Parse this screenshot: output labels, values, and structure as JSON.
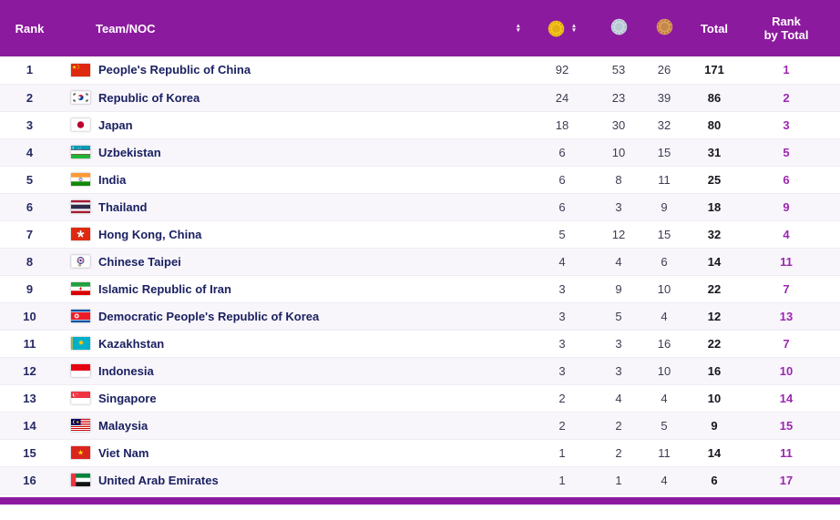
{
  "header": {
    "rank": "Rank",
    "team": "Team/NOC",
    "total": "Total",
    "rank_by_total": "Rank by Total"
  },
  "icons": {
    "gold": "gold-medal-icon",
    "silver": "silver-medal-icon",
    "bronze": "bronze-medal-icon",
    "sort": "sort-arrows-icon"
  },
  "colors": {
    "header_bg": "#8C1A9F",
    "accent_purple": "#9C27B0",
    "team_text": "#1B2161",
    "rank_text": "#262A64",
    "row_alt_bg": "#F8F6FB",
    "row_border": "#EFEBF4"
  },
  "table": {
    "rows": [
      {
        "rank": "1",
        "noc_code": "chn",
        "team": "People's Republic of China",
        "gold": "92",
        "silver": "53",
        "bronze": "26",
        "total": "171",
        "rank_by_total": "1"
      },
      {
        "rank": "2",
        "noc_code": "kor",
        "team": "Republic of Korea",
        "gold": "24",
        "silver": "23",
        "bronze": "39",
        "total": "86",
        "rank_by_total": "2"
      },
      {
        "rank": "3",
        "noc_code": "jpn",
        "team": "Japan",
        "gold": "18",
        "silver": "30",
        "bronze": "32",
        "total": "80",
        "rank_by_total": "3"
      },
      {
        "rank": "4",
        "noc_code": "uzb",
        "team": "Uzbekistan",
        "gold": "6",
        "silver": "10",
        "bronze": "15",
        "total": "31",
        "rank_by_total": "5"
      },
      {
        "rank": "5",
        "noc_code": "ind",
        "team": "India",
        "gold": "6",
        "silver": "8",
        "bronze": "11",
        "total": "25",
        "rank_by_total": "6"
      },
      {
        "rank": "6",
        "noc_code": "tha",
        "team": "Thailand",
        "gold": "6",
        "silver": "3",
        "bronze": "9",
        "total": "18",
        "rank_by_total": "9"
      },
      {
        "rank": "7",
        "noc_code": "hkg",
        "team": "Hong Kong, China",
        "gold": "5",
        "silver": "12",
        "bronze": "15",
        "total": "32",
        "rank_by_total": "4"
      },
      {
        "rank": "8",
        "noc_code": "tpe",
        "team": "Chinese Taipei",
        "gold": "4",
        "silver": "4",
        "bronze": "6",
        "total": "14",
        "rank_by_total": "11"
      },
      {
        "rank": "9",
        "noc_code": "iri",
        "team": "Islamic Republic of Iran",
        "gold": "3",
        "silver": "9",
        "bronze": "10",
        "total": "22",
        "rank_by_total": "7"
      },
      {
        "rank": "10",
        "noc_code": "prk",
        "team": "Democratic People's Republic of Korea",
        "gold": "3",
        "silver": "5",
        "bronze": "4",
        "total": "12",
        "rank_by_total": "13"
      },
      {
        "rank": "11",
        "noc_code": "kaz",
        "team": "Kazakhstan",
        "gold": "3",
        "silver": "3",
        "bronze": "16",
        "total": "22",
        "rank_by_total": "7"
      },
      {
        "rank": "12",
        "noc_code": "ina",
        "team": "Indonesia",
        "gold": "3",
        "silver": "3",
        "bronze": "10",
        "total": "16",
        "rank_by_total": "10"
      },
      {
        "rank": "13",
        "noc_code": "sgp",
        "team": "Singapore",
        "gold": "2",
        "silver": "4",
        "bronze": "4",
        "total": "10",
        "rank_by_total": "14"
      },
      {
        "rank": "14",
        "noc_code": "mas",
        "team": "Malaysia",
        "gold": "2",
        "silver": "2",
        "bronze": "5",
        "total": "9",
        "rank_by_total": "15"
      },
      {
        "rank": "15",
        "noc_code": "vie",
        "team": "Viet Nam",
        "gold": "1",
        "silver": "2",
        "bronze": "11",
        "total": "14",
        "rank_by_total": "11"
      },
      {
        "rank": "16",
        "noc_code": "uae",
        "team": "United Arab Emirates",
        "gold": "1",
        "silver": "1",
        "bronze": "4",
        "total": "6",
        "rank_by_total": "17"
      }
    ]
  }
}
